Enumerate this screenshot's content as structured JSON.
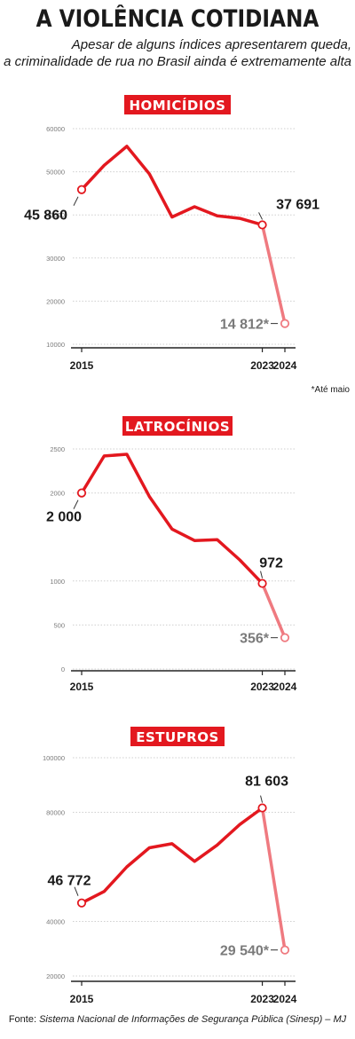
{
  "header": {
    "title": "A VIOLÊNCIA COTIDIANA",
    "subtitle_line1": "Apesar de alguns índices apresentarem queda,",
    "subtitle_line2": "a criminalidade de rua no Brasil ainda é extremamente alta"
  },
  "colors": {
    "accent": "#e3181f",
    "accent_light": "#ef7a80",
    "grid": "#cfcfcf",
    "text_dark": "#1a1a1a",
    "text_grey": "#7a7a7a"
  },
  "chart_data": [
    {
      "type": "line",
      "title": "HOMICÍDIOS",
      "x": [
        2015,
        2016,
        2017,
        2018,
        2019,
        2020,
        2021,
        2022,
        2023,
        2024
      ],
      "y": [
        45860,
        51500,
        55900,
        49500,
        39500,
        41900,
        39800,
        39200,
        37691,
        14812
      ],
      "ylim": [
        10000,
        60000
      ],
      "yticks": [
        "10000",
        "20000",
        "30000",
        "40000",
        "50000",
        "60000"
      ],
      "ytick_values": [
        10000,
        20000,
        30000,
        40000,
        50000,
        60000
      ],
      "xtick_labels": [
        "2015",
        "2023",
        "2024"
      ],
      "xtick_values": [
        2015,
        2023,
        2024
      ],
      "annotations": {
        "first": "45 860",
        "main": "37 691",
        "last": "14 812*"
      },
      "footnote": "*Até maio"
    },
    {
      "type": "line",
      "title": "LATROCÍNIOS",
      "x": [
        2015,
        2016,
        2017,
        2018,
        2019,
        2020,
        2021,
        2022,
        2023,
        2024
      ],
      "y": [
        2000,
        2420,
        2440,
        1960,
        1590,
        1460,
        1470,
        1240,
        972,
        356
      ],
      "ylim": [
        0,
        2500
      ],
      "yticks": [
        "0",
        "500",
        "1000",
        "2000",
        "2500"
      ],
      "ytick_values": [
        0,
        500,
        1000,
        2000,
        2500
      ],
      "xtick_labels": [
        "2015",
        "2023",
        "2024"
      ],
      "xtick_values": [
        2015,
        2023,
        2024
      ],
      "annotations": {
        "first": "2 000",
        "main": "972",
        "last": "356*"
      },
      "footnote": ""
    },
    {
      "type": "line",
      "title": "ESTUPROS",
      "x": [
        2015,
        2016,
        2017,
        2018,
        2019,
        2020,
        2021,
        2022,
        2023,
        2024
      ],
      "y": [
        46772,
        51000,
        60000,
        67000,
        68500,
        62000,
        68000,
        75500,
        81603,
        29540
      ],
      "ylim": [
        20000,
        100000
      ],
      "yticks": [
        "20000",
        "40000",
        "80000",
        "100000"
      ],
      "ytick_values": [
        20000,
        40000,
        80000,
        100000
      ],
      "xtick_labels": [
        "2015",
        "2023",
        "2024"
      ],
      "xtick_values": [
        2015,
        2023,
        2024
      ],
      "annotations": {
        "first": "46 772",
        "main": "81 603",
        "last": "29 540*"
      },
      "footnote": ""
    }
  ],
  "footer": {
    "prefix": "Fonte: ",
    "source": "Sistema Nacional de Informações de Segurança Pública (Sinesp) – MJ"
  }
}
